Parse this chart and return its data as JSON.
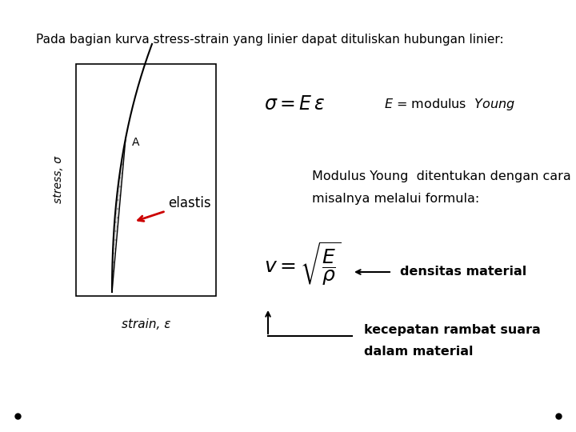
{
  "bg_color": "#ffffff",
  "title_text": "Pada bagian kurva stress-strain yang linier dapat dituliskan hubungan linier:",
  "title_fontsize": 11.0,
  "stress_label": "stress, σ",
  "strain_label": "strain, ε",
  "elastis_label": "elastis",
  "eq1_fontsize": 17,
  "E_fontsize": 11.5,
  "modulus_text1": "Modulus Young  ditentukan dengan cara lain,",
  "modulus_text2": "misalnya melalui formula:",
  "mod_fontsize": 11.5,
  "formula_fontsize": 18,
  "densitas_text": "densitas material",
  "densitas_fontsize": 11.5,
  "kecepatan_text1": "kecepatan rambat suara",
  "kecepatan_text2": "dalam material",
  "kec_fontsize": 11.5
}
